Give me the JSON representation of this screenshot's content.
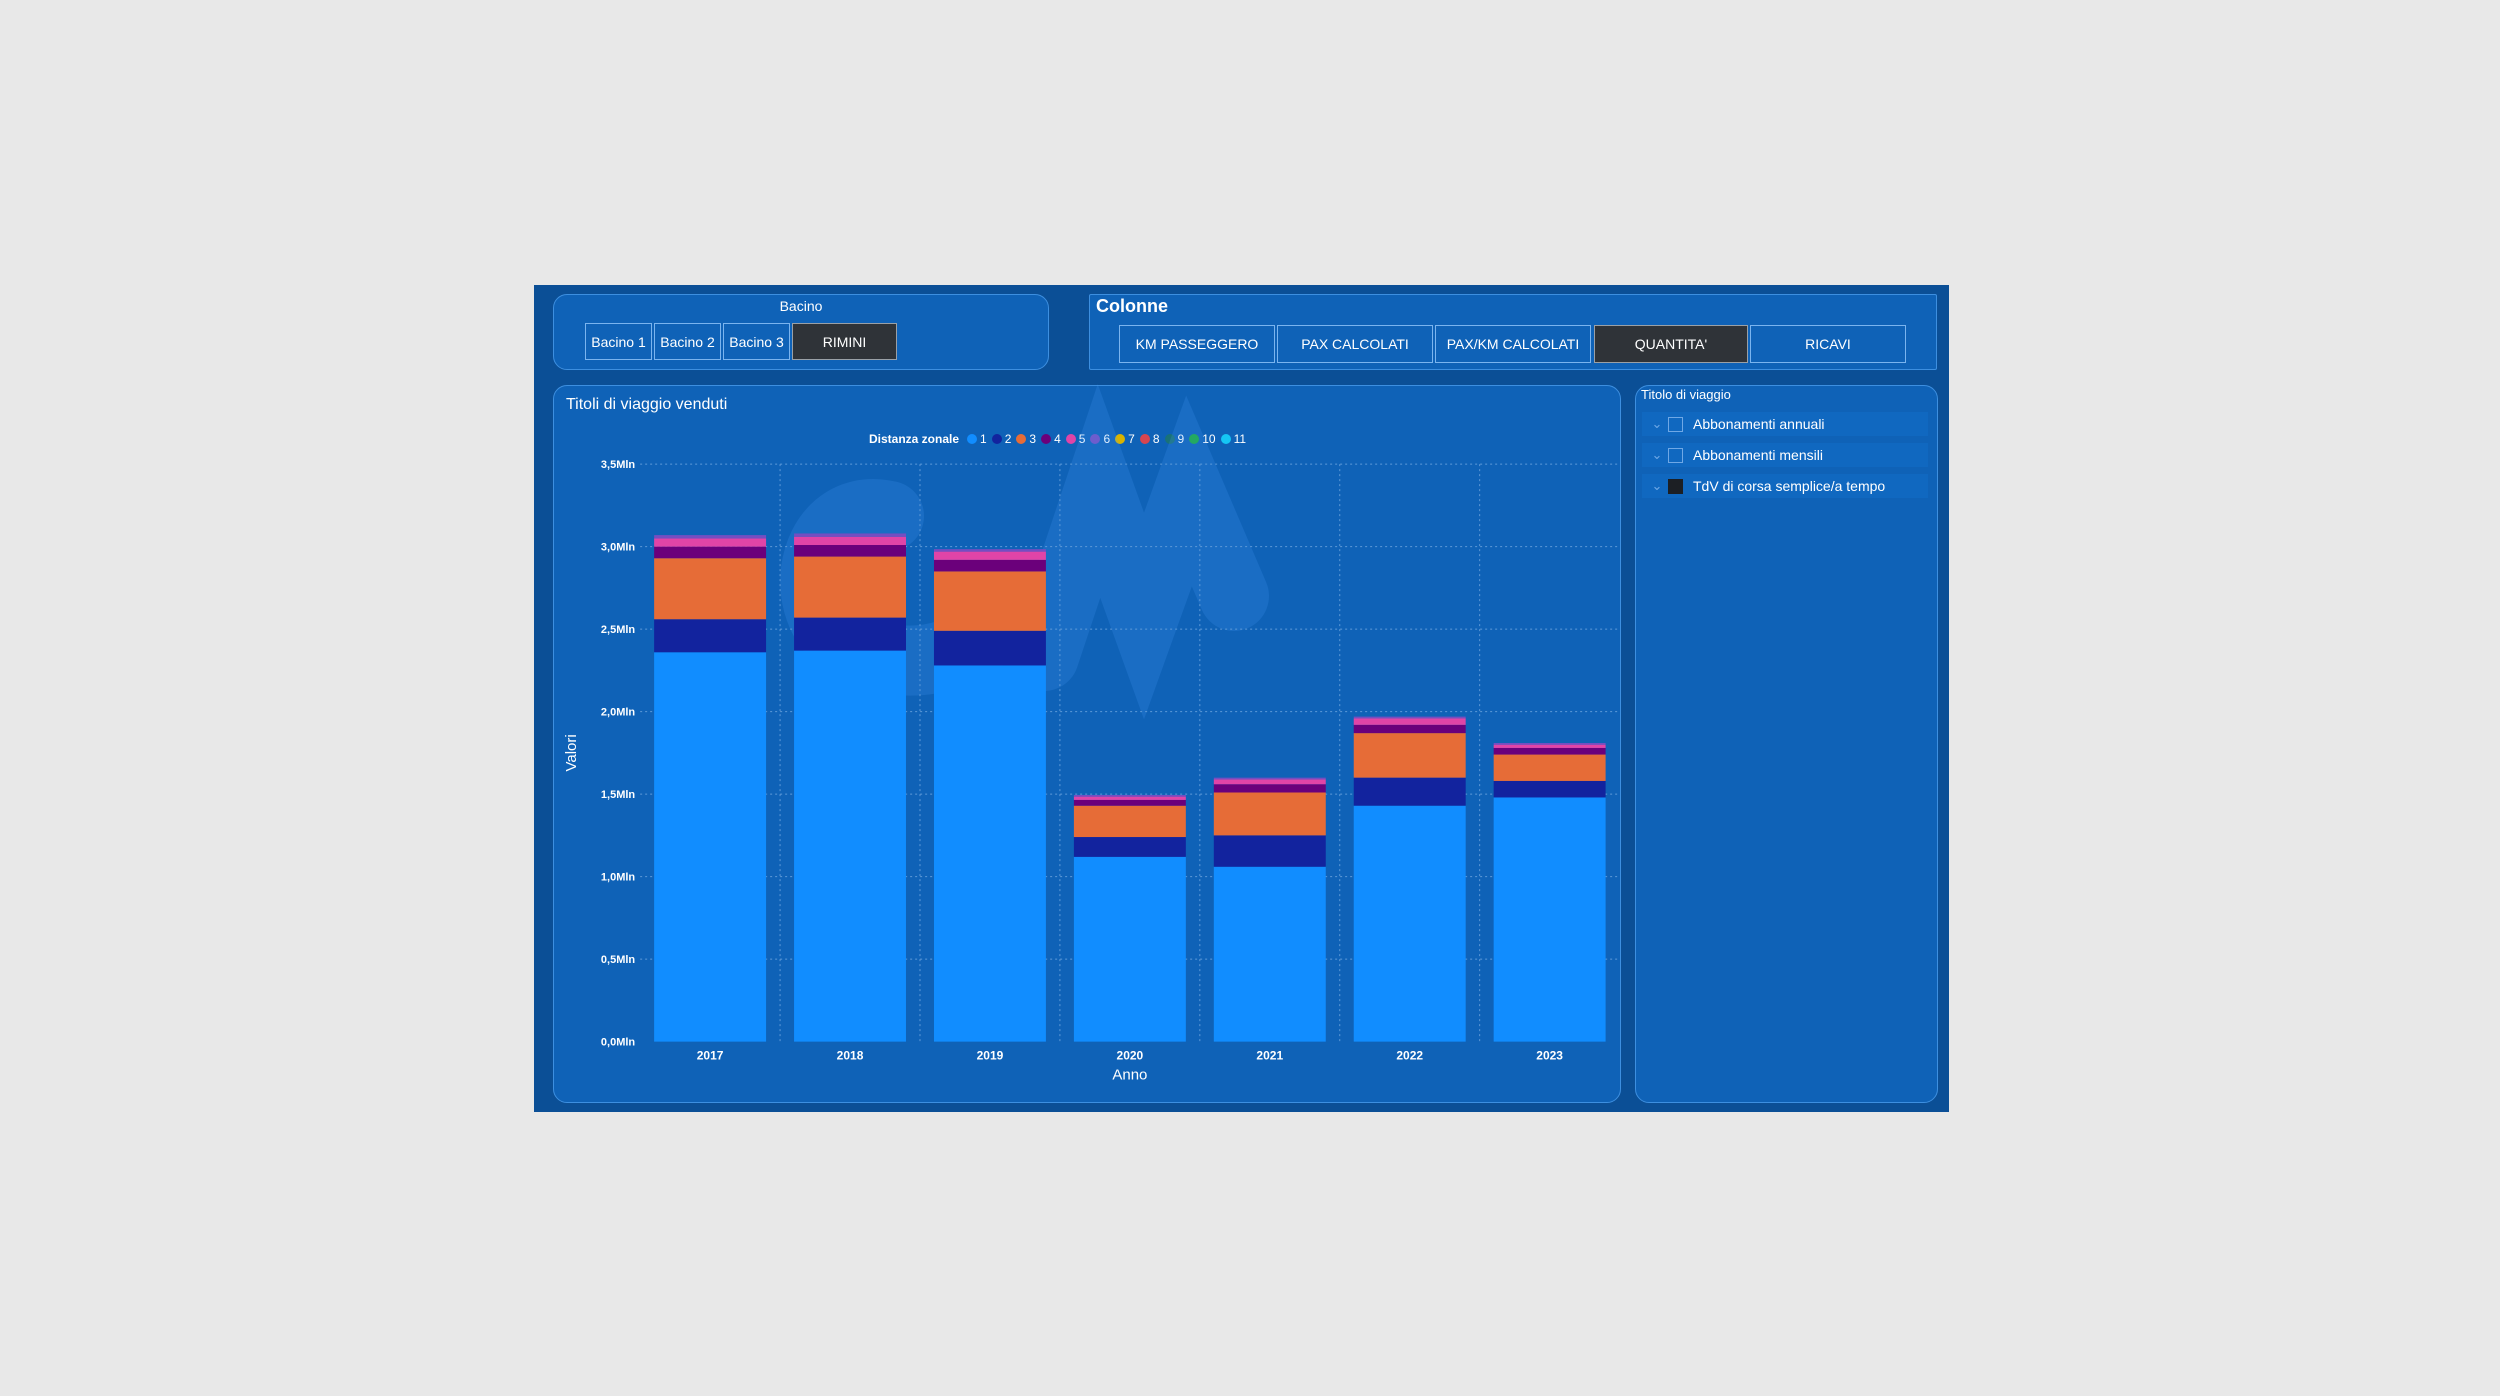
{
  "bacino": {
    "title": "Bacino",
    "buttons": [
      "Bacino 1",
      "Bacino 2",
      "Bacino 3",
      "RIMINI"
    ],
    "selected": "RIMINI"
  },
  "colonne": {
    "title": "Colonne",
    "buttons": [
      "KM PASSEGGERO",
      "PAX CALCOLATI",
      "PAX/KM CALCOLATI",
      "QUANTITA'",
      "RICAVI"
    ],
    "selected": "QUANTITA'"
  },
  "slicer": {
    "title": "Titolo di viaggio",
    "items": [
      {
        "label": "Abbonamenti annuali",
        "checked": false
      },
      {
        "label": "Abbonamenti mensili",
        "checked": false
      },
      {
        "label": "TdV di corsa semplice/a tempo",
        "checked": true
      }
    ]
  },
  "chart_data": {
    "type": "bar",
    "stacked": true,
    "title": "Titoli di viaggio venduti",
    "xlabel": "Anno",
    "ylabel": "Valori",
    "legend_title": "Distanza zonale",
    "legend_position": "top",
    "categories": [
      "2017",
      "2018",
      "2019",
      "2020",
      "2021",
      "2022",
      "2023"
    ],
    "ylim": [
      0,
      3500000
    ],
    "yticks": [
      0,
      500000,
      1000000,
      1500000,
      2000000,
      2500000,
      3000000,
      3500000
    ],
    "ytick_labels": [
      "0,0Mln",
      "0,5Mln",
      "1,0Mln",
      "1,5Mln",
      "2,0Mln",
      "2,5Mln",
      "3,0Mln",
      "3,5Mln"
    ],
    "grid": true,
    "series": [
      {
        "name": "1",
        "color": "#118dff",
        "values": [
          2360000,
          2370000,
          2280000,
          1120000,
          1060000,
          1430000,
          1480000
        ]
      },
      {
        "name": "2",
        "color": "#12239e",
        "values": [
          200000,
          200000,
          210000,
          120000,
          190000,
          170000,
          100000
        ]
      },
      {
        "name": "3",
        "color": "#e66c37",
        "values": [
          370000,
          370000,
          360000,
          190000,
          260000,
          270000,
          160000
        ]
      },
      {
        "name": "4",
        "color": "#6b007b",
        "values": [
          70000,
          70000,
          70000,
          35000,
          50000,
          50000,
          40000
        ]
      },
      {
        "name": "5",
        "color": "#e044a7",
        "values": [
          50000,
          50000,
          50000,
          20000,
          30000,
          40000,
          20000
        ]
      },
      {
        "name": "6",
        "color": "#744ec2",
        "values": [
          20000,
          20000,
          15000,
          10000,
          10000,
          10000,
          10000
        ]
      },
      {
        "name": "7",
        "color": "#d9b300",
        "values": [
          0,
          0,
          0,
          0,
          0,
          0,
          0
        ]
      },
      {
        "name": "8",
        "color": "#d64550",
        "values": [
          0,
          0,
          0,
          0,
          0,
          0,
          0
        ]
      },
      {
        "name": "9",
        "color": "#197278",
        "values": [
          0,
          0,
          0,
          0,
          0,
          0,
          0
        ]
      },
      {
        "name": "10",
        "color": "#1aab40",
        "values": [
          0,
          0,
          0,
          0,
          0,
          0,
          0
        ]
      },
      {
        "name": "11",
        "color": "#15c6f4",
        "values": [
          0,
          0,
          0,
          0,
          0,
          0,
          0
        ]
      }
    ]
  }
}
